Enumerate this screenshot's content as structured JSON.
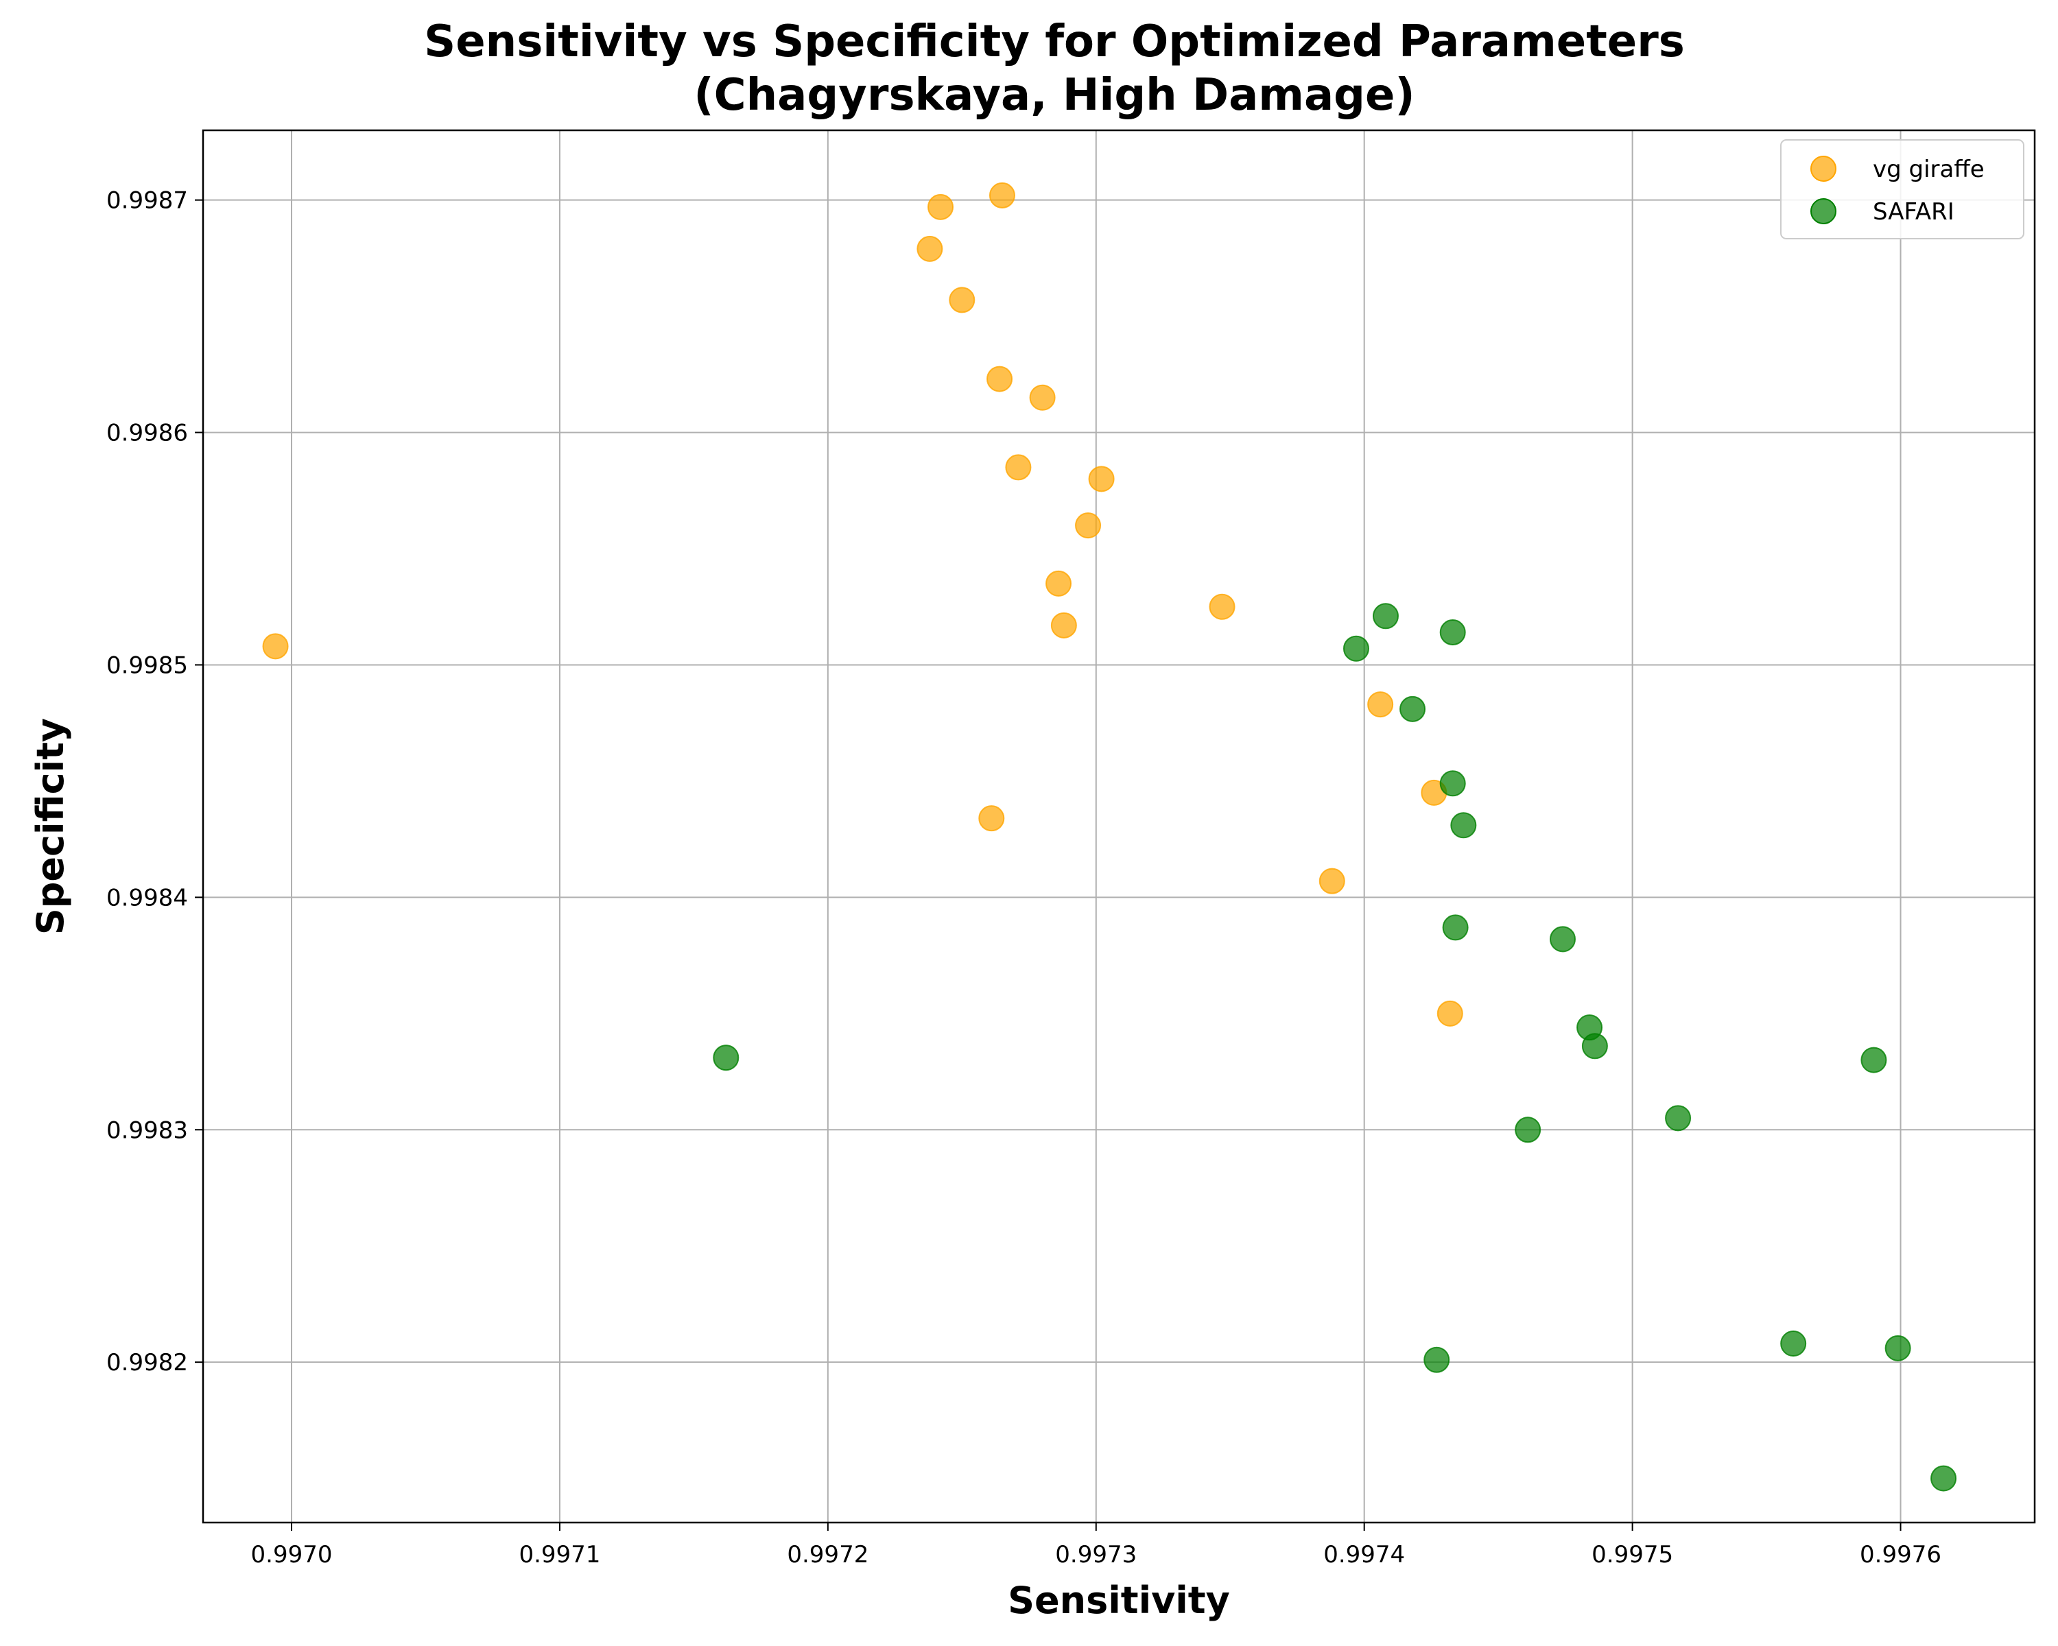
{
  "chart_data": {
    "type": "scatter",
    "title": "Sensitivity vs Specificity for Optimized Parameters\n(Chagyrskaya, High Damage)",
    "title_lines": [
      "Sensitivity vs Specificity for Optimized Parameters",
      "(Chagyrskaya, High Damage)"
    ],
    "xlabel": "Sensitivity",
    "ylabel": "Specificity",
    "xlim": [
      0.996967,
      0.99765
    ],
    "ylim": [
      0.998131,
      0.99873
    ],
    "xticks": [
      {
        "value": 0.997,
        "label": "0.9970"
      },
      {
        "value": 0.9971,
        "label": "0.9971"
      },
      {
        "value": 0.9972,
        "label": "0.9972"
      },
      {
        "value": 0.9973,
        "label": "0.9973"
      },
      {
        "value": 0.9974,
        "label": "0.9974"
      },
      {
        "value": 0.9975,
        "label": "0.9975"
      },
      {
        "value": 0.9976,
        "label": "0.9976"
      }
    ],
    "yticks": [
      {
        "value": 0.9982,
        "label": "0.9982"
      },
      {
        "value": 0.9983,
        "label": "0.9983"
      },
      {
        "value": 0.9984,
        "label": "0.9984"
      },
      {
        "value": 0.9985,
        "label": "0.9985"
      },
      {
        "value": 0.9986,
        "label": "0.9986"
      },
      {
        "value": 0.9987,
        "label": "0.9987"
      }
    ],
    "grid": true,
    "legend_position": "top-right",
    "series": [
      {
        "name": "vg giraffe",
        "color": "#FFA500",
        "opacity": 0.7,
        "points": [
          {
            "x": 0.996994,
            "y": 0.998508
          },
          {
            "x": 0.997242,
            "y": 0.998697
          },
          {
            "x": 0.997265,
            "y": 0.998702
          },
          {
            "x": 0.997238,
            "y": 0.998679
          },
          {
            "x": 0.99725,
            "y": 0.998657
          },
          {
            "x": 0.997264,
            "y": 0.998623
          },
          {
            "x": 0.99728,
            "y": 0.998615
          },
          {
            "x": 0.997271,
            "y": 0.998585
          },
          {
            "x": 0.997302,
            "y": 0.99858
          },
          {
            "x": 0.997297,
            "y": 0.99856
          },
          {
            "x": 0.997286,
            "y": 0.998535
          },
          {
            "x": 0.997288,
            "y": 0.998517
          },
          {
            "x": 0.997347,
            "y": 0.998525
          },
          {
            "x": 0.997261,
            "y": 0.998434
          },
          {
            "x": 0.997406,
            "y": 0.998483
          },
          {
            "x": 0.997426,
            "y": 0.998445
          },
          {
            "x": 0.997388,
            "y": 0.998407
          },
          {
            "x": 0.997432,
            "y": 0.99835
          }
        ]
      },
      {
        "name": "SAFARI",
        "color": "#008000",
        "opacity": 0.7,
        "points": [
          {
            "x": 0.997162,
            "y": 0.998331
          },
          {
            "x": 0.997397,
            "y": 0.998507
          },
          {
            "x": 0.997408,
            "y": 0.998521
          },
          {
            "x": 0.997433,
            "y": 0.998514
          },
          {
            "x": 0.997418,
            "y": 0.998481
          },
          {
            "x": 0.997433,
            "y": 0.998449
          },
          {
            "x": 0.997437,
            "y": 0.998431
          },
          {
            "x": 0.997434,
            "y": 0.998387
          },
          {
            "x": 0.997474,
            "y": 0.998382
          },
          {
            "x": 0.997484,
            "y": 0.998344
          },
          {
            "x": 0.997486,
            "y": 0.998336
          },
          {
            "x": 0.997461,
            "y": 0.9983
          },
          {
            "x": 0.997517,
            "y": 0.998305
          },
          {
            "x": 0.99759,
            "y": 0.99833
          },
          {
            "x": 0.997427,
            "y": 0.998201
          },
          {
            "x": 0.99756,
            "y": 0.998208
          },
          {
            "x": 0.997599,
            "y": 0.998206
          },
          {
            "x": 0.997616,
            "y": 0.99815
          }
        ]
      }
    ]
  }
}
